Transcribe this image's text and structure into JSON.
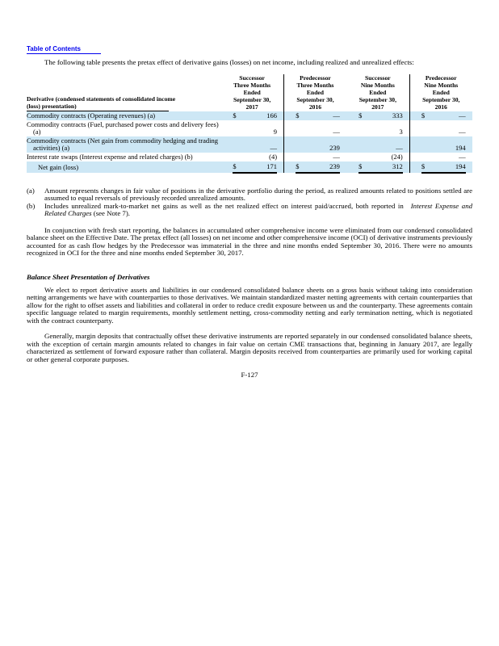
{
  "page": {
    "toc_link": "Table of Contents",
    "intro": "The following table presents the pretax effect of derivative gains (losses) on net income, including realized and unrealized effects:",
    "page_number": "F-127"
  },
  "table": {
    "label_header": "Derivative (condensed statements of consolidated income\n(loss) presentation)",
    "column_headers": [
      "Successor\nThree Months\nEnded\nSeptember 30,\n2017",
      "Predecessor\nThree Months\nEnded\nSeptember 30,\n2016",
      "Successor\nNine Months\nEnded\nSeptember 30,\n2017",
      "Predecessor\nNine Months\nEnded\nSeptember 30,\n2016"
    ],
    "rows": [
      {
        "label": "Commodity contracts (Operating revenues) (a)",
        "dollar": "$",
        "values": [
          "166",
          "—",
          "333",
          "—"
        ]
      },
      {
        "label": "Commodity contracts (Fuel, purchased power costs and delivery fees) (a)",
        "dollar": "",
        "values": [
          "9",
          "—",
          "3",
          "—"
        ]
      },
      {
        "label": "Commodity contracts (Net gain from commodity hedging and trading activities) (a)",
        "dollar": "",
        "values": [
          "—",
          "239",
          "—",
          "194"
        ]
      },
      {
        "label": "Interest rate swaps (Interest expense and related charges) (b)",
        "dollar": "",
        "values": [
          "(4)",
          "—",
          "(24)",
          "—"
        ]
      },
      {
        "label": "Net gain (loss)",
        "dollar": "$",
        "values": [
          "171",
          "239",
          "312",
          "194"
        ]
      }
    ]
  },
  "footnotes": [
    {
      "marker": "(a)",
      "text": "Amount represents changes in fair value of positions in the derivative portfolio during the period, as realized amounts related to positions settled are assumed to equal reversals of previously recorded unrealized amounts."
    },
    {
      "marker": "(b)",
      "pre": "Includes unrealized mark-to-market net gains as well as the net realized effect on interest paid/accrued, both reported in",
      "italic": "Interest Expense and Related Charges",
      "post": "(see Note 7)."
    }
  ],
  "paragraphs": {
    "p1": "In conjunction with fresh start reporting, the balances in accumulated other comprehensive income were eliminated from our condensed consolidated balance sheet on the Effective Date. The pretax effect (all losses) on net income and other comprehensive income (OCI) of derivative instruments previously accounted for as cash flow hedges by the Predecessor was immaterial in the three and nine months ended September 30, 2016. There were no amounts recognized in OCI for the three and nine months ended September 30, 2017.",
    "heading": "Balance Sheet Presentation of Derivatives",
    "p2": "We elect to report derivative assets and liabilities in our condensed consolidated balance sheets on a gross basis without taking into consideration netting arrangements we have with counterparties to those derivatives. We maintain standardized master netting agreements with certain counterparties that allow for the right to offset assets and liabilities and collateral in order to reduce credit exposure between us and the counterparty. These agreements contain specific language related to margin requirements, monthly settlement netting, cross-commodity netting and early termination netting, which is negotiated with the contract counterparty.",
    "p3": "Generally, margin deposits that contractually offset these derivative instruments are reported separately in our condensed consolidated balance sheets, with the exception of certain margin amounts related to changes in fair value on certain CME transactions that, beginning in January 2017, are legally characterized as settlement of forward exposure rather than collateral. Margin deposits received from counterparties are primarily used for working capital or other general corporate purposes."
  },
  "colors": {
    "row_shade": "#cde7f5",
    "link": "#0000ee"
  }
}
